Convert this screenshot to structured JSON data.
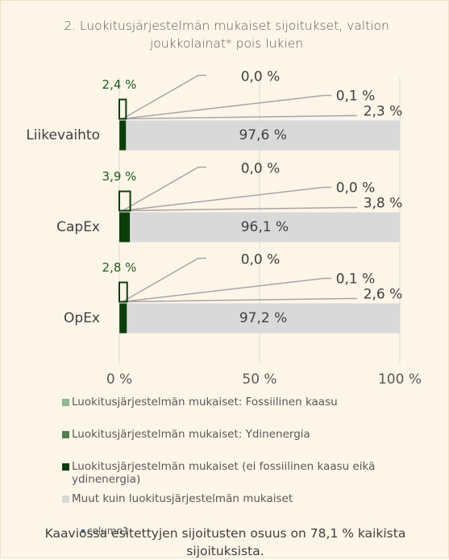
{
  "chart_data": {
    "type": "stacked_barh",
    "title": "2. Luokitusjärjestelmän mukaiset sijoitukset, valtion joukkolainat* pois lukien",
    "categories": [
      "Liikevaihto",
      "CapEx",
      "OpEx"
    ],
    "series": [
      {
        "name": "Luokitusjärjestelmän mukaiset: Fossiilinen kaasu",
        "color": "#8fb98f",
        "values": [
          0.0,
          0.0,
          0.0
        ],
        "value_labels": [
          "0,0 %",
          "0,0 %",
          "0,0 %"
        ]
      },
      {
        "name": "Luokitusjärjestelmän mukaiset: Ydinenergia",
        "color": "#4e7d4e",
        "values": [
          0.1,
          0.0,
          0.1
        ],
        "value_labels": [
          "0,1 %",
          "0,0 %",
          "0,1 %"
        ]
      },
      {
        "name": "Luokitusjärjestelmän mukaiset (ei fossiilinen kaasu eikä ydinenergia)",
        "color": "#0b3d0b",
        "values": [
          2.3,
          3.8,
          2.6
        ],
        "value_labels": [
          "2,3 %",
          "3,8 %",
          "2,6 %"
        ]
      },
      {
        "name": "Muut kuin luokitusjärjestelmän mukaiset",
        "color": "#d9d9d9",
        "values": [
          97.6,
          96.1,
          97.2
        ],
        "value_labels": [
          "97,6 %",
          "96,1 %",
          "97,2 %"
        ]
      },
      {
        "name": "column1",
        "color": "#0b3d0b",
        "values": [
          2.4,
          3.9,
          2.8
        ],
        "value_labels": [
          "2,4 %",
          "3,9 %",
          "2,8 %"
        ]
      }
    ],
    "xlim": [
      0,
      100
    ],
    "xticks": [
      {
        "value": 0,
        "label": "0 %"
      },
      {
        "value": 50,
        "label": "50 %"
      },
      {
        "value": 100,
        "label": "100 %"
      }
    ],
    "grid": true,
    "footnote": "Kaaviossa esitettyjen sijoitusten osuus on 78,1 % kaikista sijoituksista."
  }
}
